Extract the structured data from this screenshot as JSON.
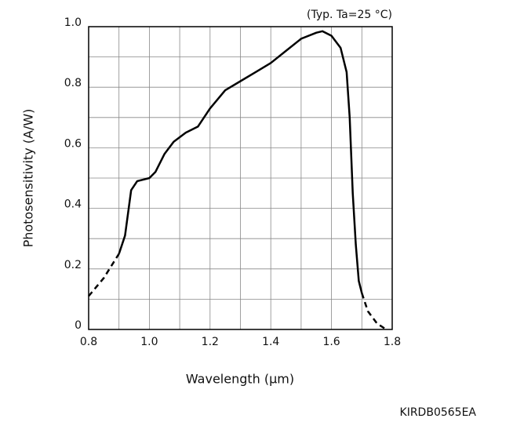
{
  "chart_data": {
    "type": "line",
    "note": "(Typ. Ta=25 °C)",
    "xlabel": "Wavelength (μm)",
    "ylabel": "Photosensitivity (A/W)",
    "code": "KIRDB0565EA",
    "xlim": [
      0.8,
      1.8
    ],
    "ylim": [
      0,
      1
    ],
    "xticks": [
      0.8,
      {
        "value": 1,
        "label": "1.0"
      },
      1.2,
      1.4,
      1.6,
      1.8
    ],
    "yticks": [
      0,
      0.2,
      0.4,
      0.6,
      0.8,
      {
        "value": 1,
        "label": "1.0"
      }
    ],
    "xminorticks": [
      0.9,
      1.1,
      1.3,
      1.5,
      1.7
    ],
    "yminorticks": [
      0.1,
      0.3,
      0.5,
      0.7,
      0.9
    ],
    "grid": true,
    "series": [
      {
        "style": "dashed",
        "color": "#000000",
        "x": [
          0.8,
          0.85,
          0.9
        ],
        "values": [
          0.11,
          0.17,
          0.25
        ]
      },
      {
        "style": "solid",
        "color": "#000000",
        "x": [
          0.9,
          0.92,
          0.94,
          0.96,
          1.0,
          1.02,
          1.05,
          1.08,
          1.12,
          1.16,
          1.2,
          1.25,
          1.3,
          1.35,
          1.4,
          1.45,
          1.5,
          1.55,
          1.57,
          1.6,
          1.63,
          1.65,
          1.66,
          1.67,
          1.68,
          1.69,
          1.7
        ],
        "values": [
          0.25,
          0.31,
          0.46,
          0.49,
          0.5,
          0.52,
          0.58,
          0.62,
          0.65,
          0.67,
          0.73,
          0.79,
          0.82,
          0.85,
          0.88,
          0.92,
          0.96,
          0.98,
          0.985,
          0.97,
          0.93,
          0.85,
          0.7,
          0.45,
          0.28,
          0.16,
          0.12
        ]
      },
      {
        "style": "dashed",
        "color": "#000000",
        "x": [
          1.7,
          1.72,
          1.75,
          1.78
        ],
        "values": [
          0.12,
          0.06,
          0.02,
          0
        ]
      }
    ]
  }
}
